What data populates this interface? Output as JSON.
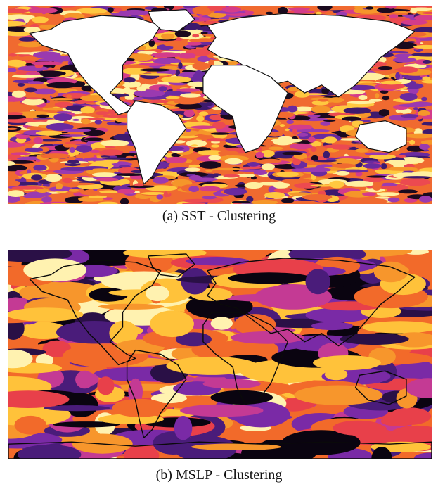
{
  "figure": {
    "panels": [
      {
        "id": "a",
        "caption": "(a)  SST - Clustering",
        "palette": [
          "#1a0a1e",
          "#3d1a6e",
          "#6a2aa0",
          "#9a3ab0",
          "#d43c8a",
          "#ec4a50",
          "#f06a30",
          "#f5962a",
          "#ffc840",
          "#fff0a0"
        ],
        "land_color": "#ffffff",
        "outline_color": "#111111"
      },
      {
        "id": "b",
        "caption": "(b)  MSLP - Clustering",
        "palette": [
          "#0a0410",
          "#2a1046",
          "#4a1c7a",
          "#7a2aa6",
          "#c43a94",
          "#e8404a",
          "#f26a2a",
          "#f7962c",
          "#ffc23a",
          "#fff2b0"
        ],
        "land_color": "none",
        "outline_color": "#0a0a0a"
      }
    ]
  }
}
